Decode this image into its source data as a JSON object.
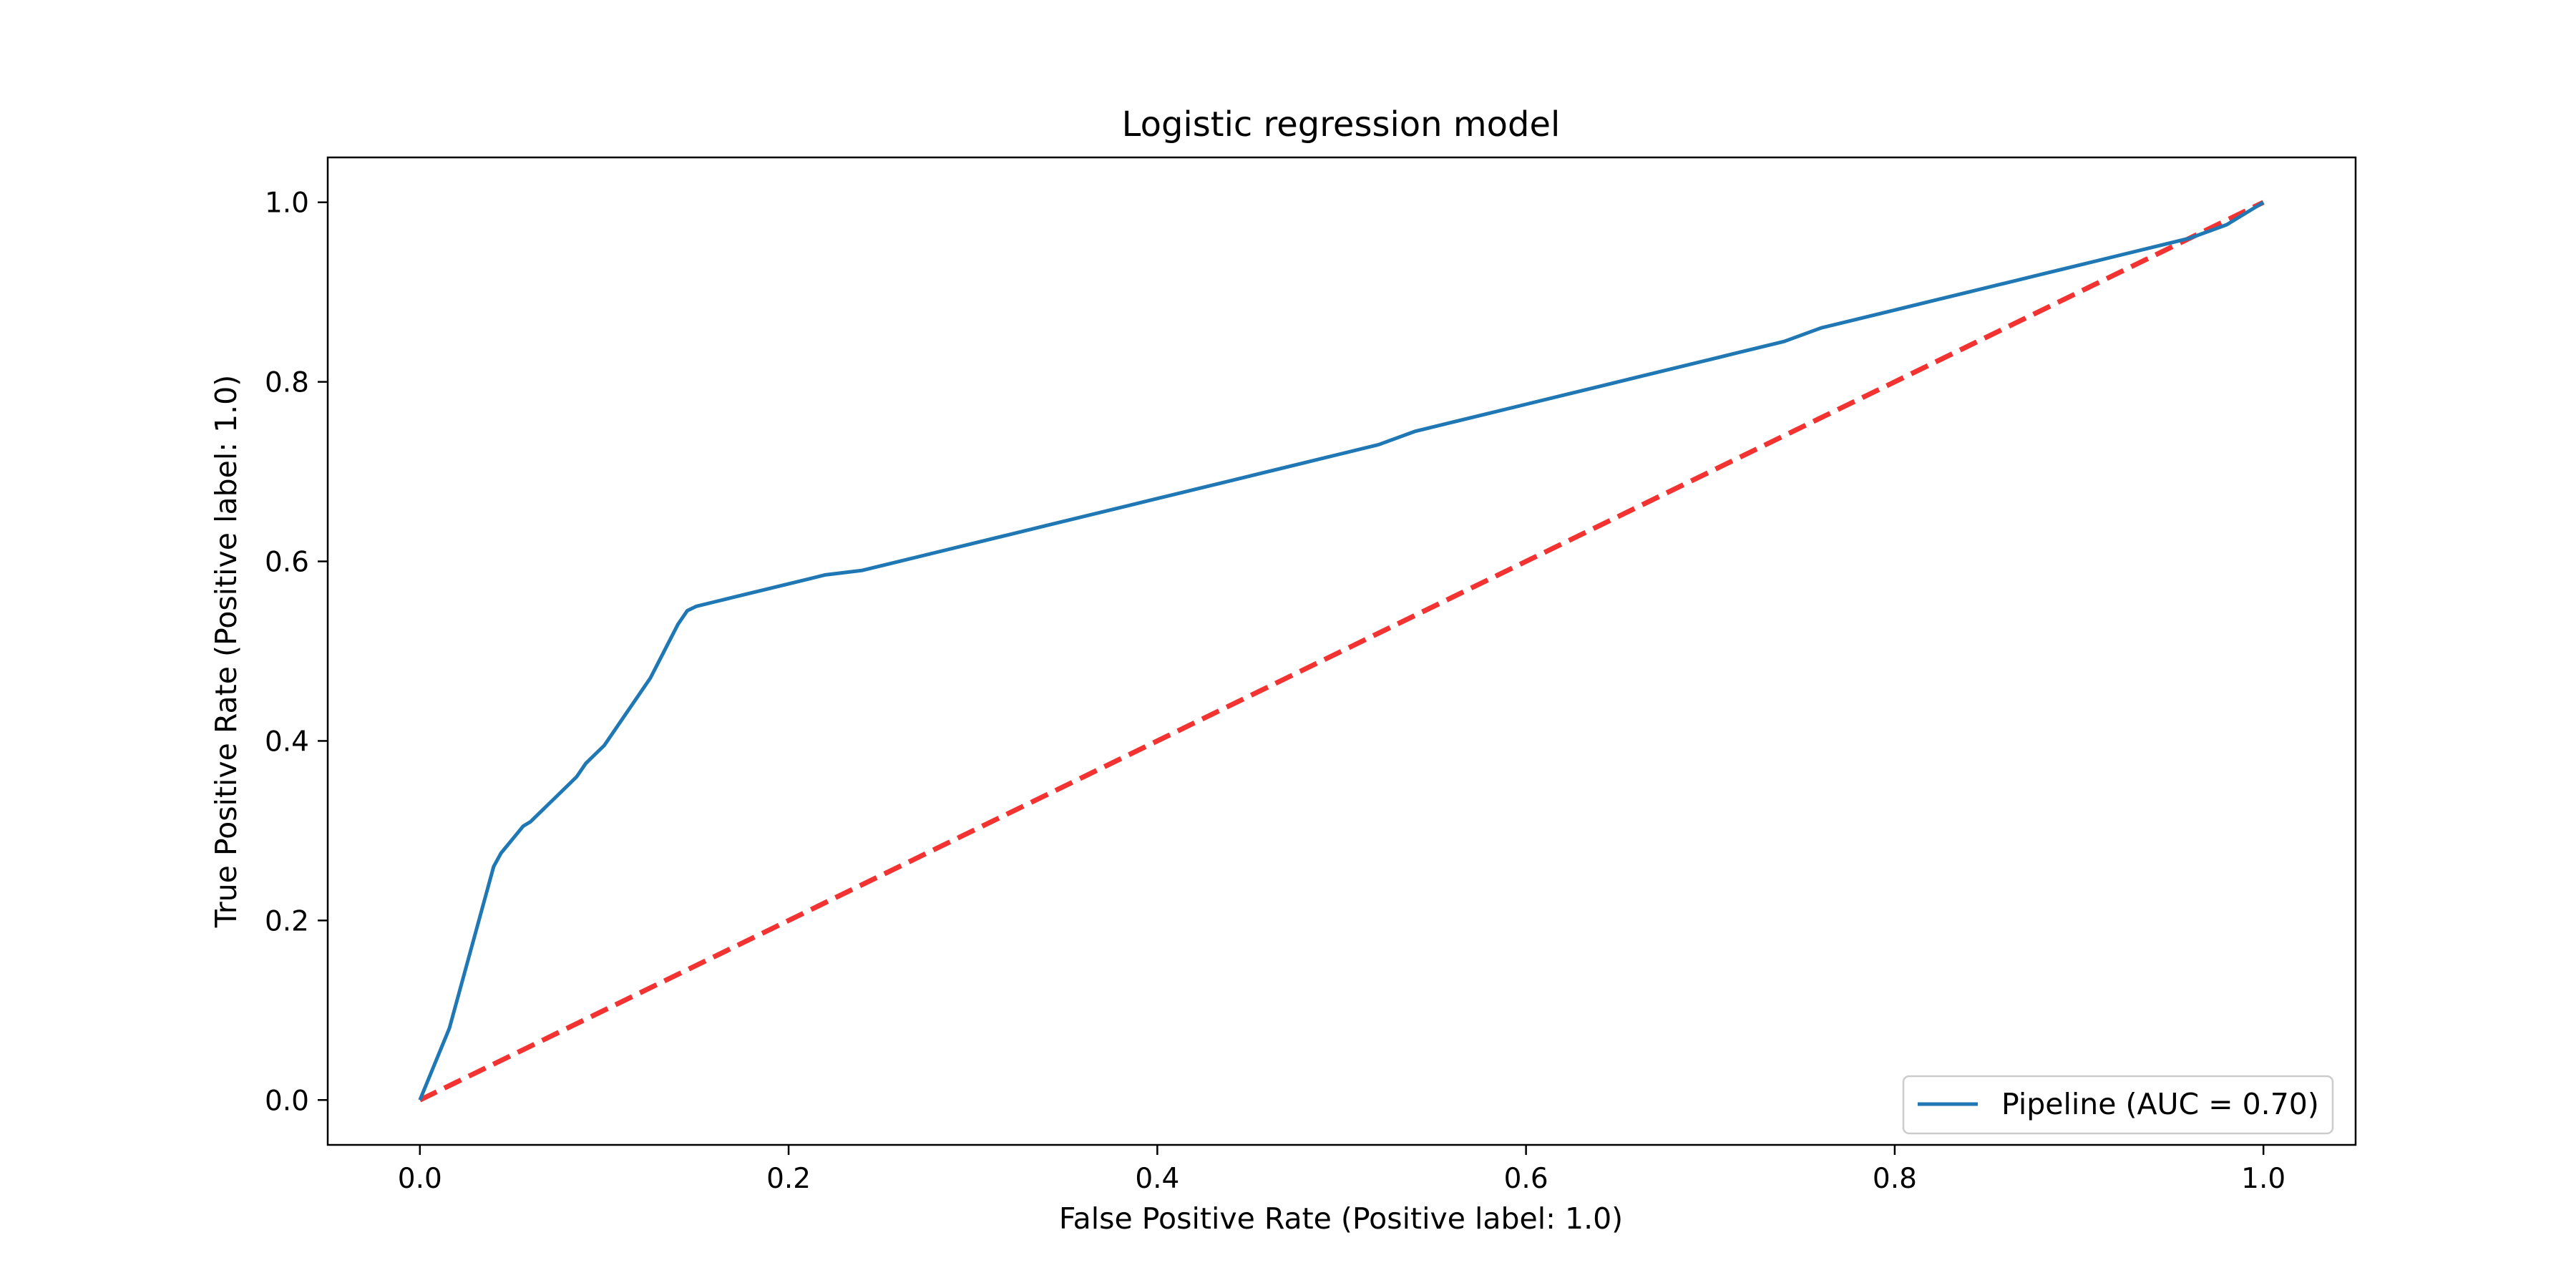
{
  "chart_data": {
    "type": "line",
    "title": "Logistic regression model",
    "xlabel": "False Positive Rate (Positive label: 1.0)",
    "ylabel": "True Positive Rate (Positive label: 1.0)",
    "xlim": [
      -0.05,
      1.05
    ],
    "ylim": [
      -0.05,
      1.05
    ],
    "xticks": [
      0.0,
      0.2,
      0.4,
      0.6,
      0.8,
      1.0
    ],
    "yticks": [
      0.0,
      0.2,
      0.4,
      0.6,
      0.8,
      1.0
    ],
    "xtick_labels": [
      "0.0",
      "0.2",
      "0.4",
      "0.6",
      "0.8",
      "1.0"
    ],
    "ytick_labels": [
      "0.0",
      "0.2",
      "0.4",
      "0.6",
      "0.8",
      "1.0"
    ],
    "grid": false,
    "legend": {
      "position": "lower right",
      "entries": [
        "Pipeline (AUC = 0.70)"
      ]
    },
    "series": [
      {
        "name": "Pipeline (AUC = 0.70)",
        "color": "#1f77b4",
        "style": "solid",
        "x": [
          0.0,
          0.004,
          0.008,
          0.012,
          0.016,
          0.02,
          0.024,
          0.028,
          0.032,
          0.036,
          0.04,
          0.044,
          0.048,
          0.052,
          0.056,
          0.06,
          0.065,
          0.07,
          0.075,
          0.08,
          0.085,
          0.09,
          0.095,
          0.1,
          0.105,
          0.11,
          0.115,
          0.12,
          0.125,
          0.13,
          0.135,
          0.14,
          0.145,
          0.15,
          0.16,
          0.17,
          0.18,
          0.19,
          0.2,
          0.21,
          0.22,
          0.24,
          0.26,
          0.28,
          0.3,
          0.32,
          0.34,
          0.36,
          0.38,
          0.4,
          0.42,
          0.44,
          0.46,
          0.48,
          0.5,
          0.52,
          0.54,
          0.56,
          0.58,
          0.6,
          0.62,
          0.64,
          0.66,
          0.68,
          0.7,
          0.72,
          0.74,
          0.76,
          0.78,
          0.8,
          0.82,
          0.84,
          0.86,
          0.88,
          0.9,
          0.92,
          0.94,
          0.96,
          0.98,
          1.0
        ],
        "y": [
          0.0,
          0.02,
          0.04,
          0.06,
          0.08,
          0.11,
          0.14,
          0.17,
          0.2,
          0.23,
          0.26,
          0.275,
          0.285,
          0.295,
          0.305,
          0.31,
          0.32,
          0.33,
          0.34,
          0.35,
          0.36,
          0.375,
          0.385,
          0.395,
          0.41,
          0.425,
          0.44,
          0.455,
          0.47,
          0.49,
          0.51,
          0.53,
          0.545,
          0.55,
          0.555,
          0.56,
          0.565,
          0.57,
          0.575,
          0.58,
          0.585,
          0.59,
          0.6,
          0.61,
          0.62,
          0.63,
          0.64,
          0.65,
          0.66,
          0.67,
          0.68,
          0.69,
          0.7,
          0.71,
          0.72,
          0.73,
          0.745,
          0.755,
          0.765,
          0.775,
          0.785,
          0.795,
          0.805,
          0.815,
          0.825,
          0.835,
          0.845,
          0.86,
          0.87,
          0.88,
          0.89,
          0.9,
          0.91,
          0.92,
          0.93,
          0.94,
          0.95,
          0.96,
          0.975,
          1.0
        ]
      },
      {
        "name": "",
        "color": "#f33232",
        "style": "dashed",
        "x": [
          0.0,
          1.0
        ],
        "y": [
          0.0,
          1.0
        ]
      }
    ]
  }
}
